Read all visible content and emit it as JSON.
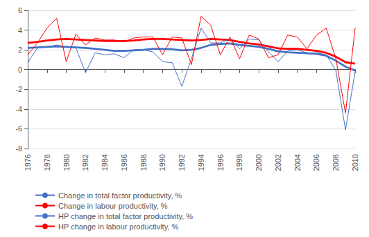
{
  "chart_data": {
    "type": "line",
    "x": [
      1976,
      1977,
      1978,
      1979,
      1980,
      1981,
      1982,
      1983,
      1984,
      1985,
      1986,
      1987,
      1988,
      1989,
      1990,
      1991,
      1992,
      1993,
      1994,
      1995,
      1996,
      1997,
      1998,
      1999,
      2000,
      2001,
      2002,
      2003,
      2004,
      2005,
      2006,
      2007,
      2008,
      2009,
      2010
    ],
    "series": [
      {
        "name": "Change in total factor productivity, %",
        "color": "#4472C4",
        "values": [
          0.7,
          2.2,
          2.3,
          2.5,
          2.3,
          2.2,
          -0.3,
          1.7,
          1.5,
          1.6,
          1.2,
          2.0,
          2.0,
          1.8,
          0.8,
          0.7,
          -1.7,
          1.1,
          4.2,
          2.7,
          2.7,
          3.1,
          2.1,
          3.1,
          3.0,
          1.8,
          0.8,
          1.9,
          2.0,
          1.7,
          1.7,
          1.5,
          -0.1,
          -6.1,
          -0.2
        ]
      },
      {
        "name": "Change in labour productivity, %",
        "color": "#FF0000",
        "values": [
          1.5,
          2.7,
          4.2,
          5.2,
          0.8,
          3.6,
          2.5,
          3.2,
          3.0,
          3.0,
          2.8,
          3.2,
          3.3,
          3.3,
          1.5,
          3.3,
          3.2,
          0.5,
          5.4,
          4.5,
          1.5,
          3.3,
          1.1,
          3.5,
          3.1,
          1.2,
          1.5,
          3.5,
          3.3,
          2.1,
          3.5,
          4.2,
          1.1,
          -4.4,
          4.2
        ]
      },
      {
        "name": "HP change in total factor productivity, %",
        "color": "#4472C4",
        "values": [
          2.2,
          2.25,
          2.3,
          2.35,
          2.3,
          2.25,
          2.2,
          2.1,
          2.0,
          1.9,
          1.9,
          1.95,
          2.0,
          2.1,
          2.1,
          2.05,
          1.95,
          2.0,
          2.2,
          2.5,
          2.6,
          2.65,
          2.5,
          2.4,
          2.3,
          2.1,
          1.85,
          1.75,
          1.7,
          1.65,
          1.6,
          1.4,
          0.9,
          0.3,
          -0.1
        ]
      },
      {
        "name": "HP change in labour productivity, %",
        "color": "#FF0000",
        "values": [
          2.7,
          2.8,
          2.95,
          3.05,
          3.1,
          3.05,
          3.0,
          2.95,
          2.9,
          2.9,
          2.9,
          2.95,
          3.05,
          3.1,
          3.1,
          3.05,
          3.0,
          2.95,
          3.0,
          3.1,
          3.05,
          3.0,
          2.8,
          2.65,
          2.55,
          2.35,
          2.15,
          2.1,
          2.1,
          2.0,
          1.9,
          1.7,
          1.3,
          0.75,
          0.6
        ]
      }
    ],
    "xlim": [
      1976,
      2010
    ],
    "xticks": [
      1976,
      1978,
      1980,
      1982,
      1984,
      1986,
      1988,
      1990,
      1992,
      1994,
      1996,
      1998,
      2000,
      2002,
      2004,
      2006,
      2008,
      2010
    ],
    "ylim": [
      -8,
      6
    ],
    "yticks": [
      -8,
      -6,
      -4,
      -2,
      0,
      2,
      4,
      6
    ],
    "grid": "y",
    "legend": "bottom"
  }
}
